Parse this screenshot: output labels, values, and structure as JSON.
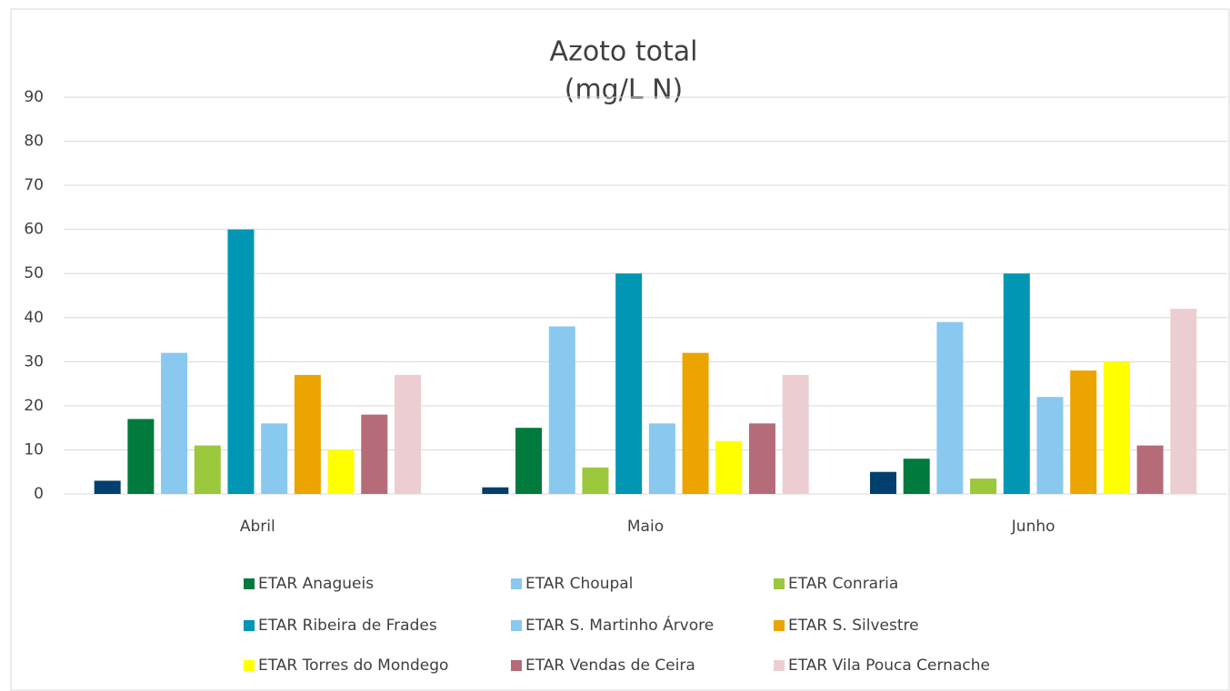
{
  "chart_data": {
    "type": "bar",
    "title": "Azoto total",
    "subtitle": "(mg/L N)",
    "categories": [
      "Abril",
      "Maio",
      "Junho"
    ],
    "series": [
      {
        "name": null,
        "color": "#003f6e",
        "values": [
          3,
          1.5,
          5
        ]
      },
      {
        "name": "ETAR Anagueis",
        "color": "#007a3d",
        "values": [
          17,
          15,
          8
        ]
      },
      {
        "name": "ETAR Choupal",
        "color": "#89c9f0",
        "values": [
          32,
          38,
          39
        ]
      },
      {
        "name": "ETAR Conraria",
        "color": "#9bc83c",
        "values": [
          11,
          6,
          3.5
        ]
      },
      {
        "name": "ETAR Ribeira de Frades",
        "color": "#0096b4",
        "values": [
          60,
          50,
          50
        ]
      },
      {
        "name": "ETAR S. Martinho Árvore",
        "color": "#89c9f0",
        "values": [
          16,
          16,
          22
        ]
      },
      {
        "name": "ETAR S. Silvestre",
        "color": "#eba400",
        "values": [
          27,
          32,
          28
        ]
      },
      {
        "name": "ETAR Torres do Mondego",
        "color": "#ffff00",
        "values": [
          10,
          12,
          30
        ]
      },
      {
        "name": "ETAR Vendas de Ceira",
        "color": "#b56b78",
        "values": [
          18,
          16,
          11
        ]
      },
      {
        "name": "ETAR Vila Pouca Cernache",
        "color": "#ecced2",
        "values": [
          27,
          27,
          42
        ]
      }
    ],
    "ylim": [
      0,
      90
    ],
    "yticks": [
      0,
      10,
      20,
      30,
      40,
      50,
      60,
      70,
      80,
      90
    ],
    "grid": true,
    "legend": "bottom"
  }
}
